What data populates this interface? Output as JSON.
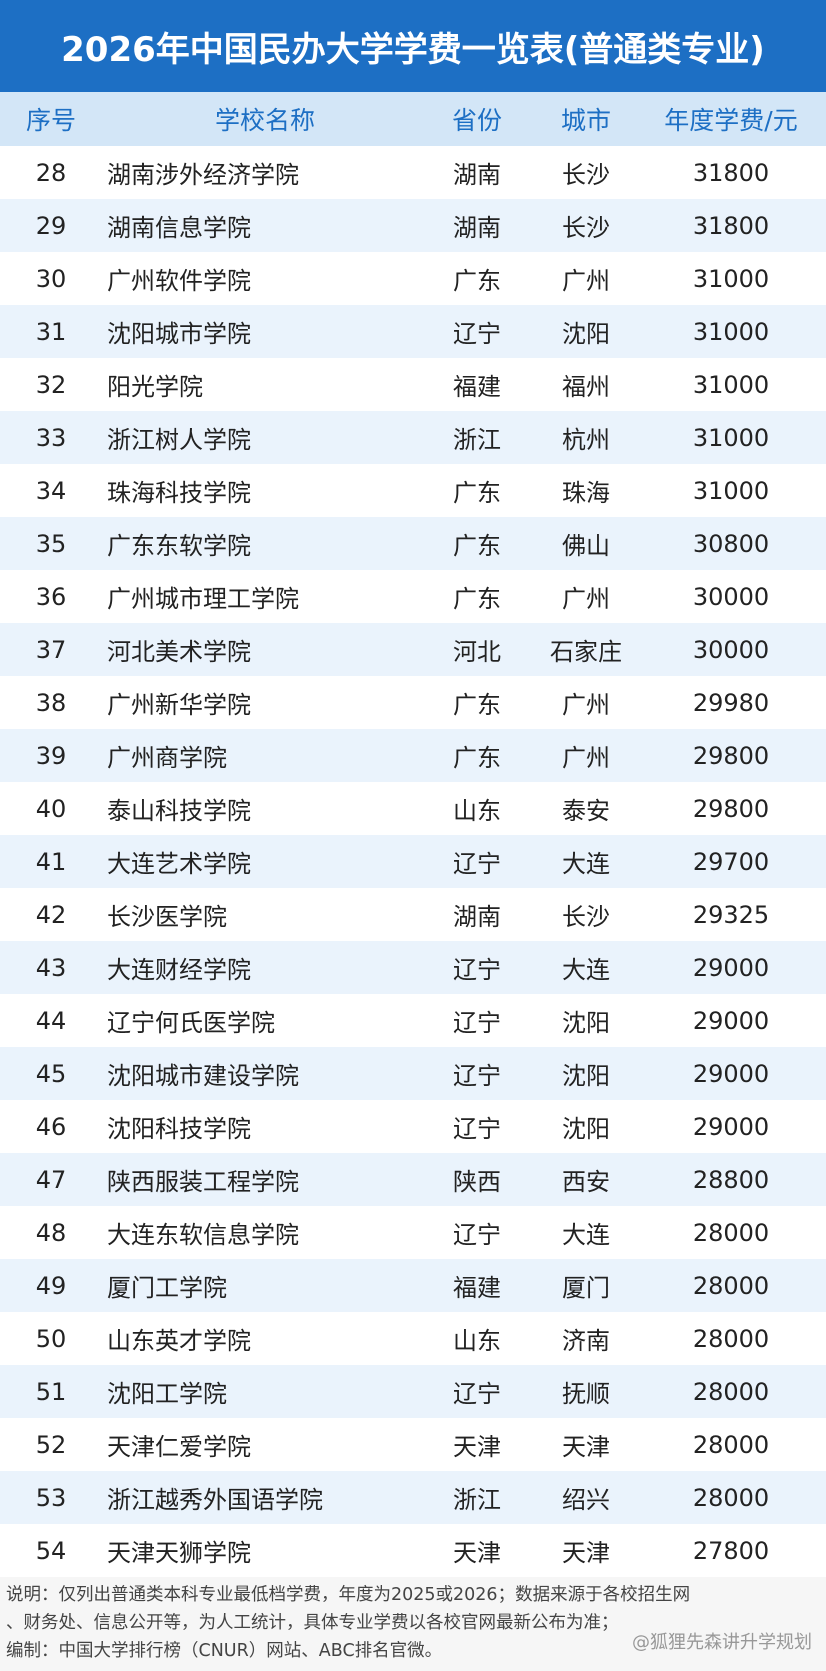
{
  "header": {
    "title": "2026年中国民办大学学费一览表(普通类专业)"
  },
  "table": {
    "columns": [
      "序号",
      "学校名称",
      "省份",
      "城市",
      "年度学费/元"
    ],
    "rows": [
      [
        28,
        "湖南涉外经济学院",
        "湖南",
        "长沙",
        31800
      ],
      [
        29,
        "湖南信息学院",
        "湖南",
        "长沙",
        31800
      ],
      [
        30,
        "广州软件学院",
        "广东",
        "广州",
        31000
      ],
      [
        31,
        "沈阳城市学院",
        "辽宁",
        "沈阳",
        31000
      ],
      [
        32,
        "阳光学院",
        "福建",
        "福州",
        31000
      ],
      [
        33,
        "浙江树人学院",
        "浙江",
        "杭州",
        31000
      ],
      [
        34,
        "珠海科技学院",
        "广东",
        "珠海",
        31000
      ],
      [
        35,
        "广东东软学院",
        "广东",
        "佛山",
        30800
      ],
      [
        36,
        "广州城市理工学院",
        "广东",
        "广州",
        30000
      ],
      [
        37,
        "河北美术学院",
        "河北",
        "石家庄",
        30000
      ],
      [
        38,
        "广州新华学院",
        "广东",
        "广州",
        29980
      ],
      [
        39,
        "广州商学院",
        "广东",
        "广州",
        29800
      ],
      [
        40,
        "泰山科技学院",
        "山东",
        "泰安",
        29800
      ],
      [
        41,
        "大连艺术学院",
        "辽宁",
        "大连",
        29700
      ],
      [
        42,
        "长沙医学院",
        "湖南",
        "长沙",
        29325
      ],
      [
        43,
        "大连财经学院",
        "辽宁",
        "大连",
        29000
      ],
      [
        44,
        "辽宁何氏医学院",
        "辽宁",
        "沈阳",
        29000
      ],
      [
        45,
        "沈阳城市建设学院",
        "辽宁",
        "沈阳",
        29000
      ],
      [
        46,
        "沈阳科技学院",
        "辽宁",
        "沈阳",
        29000
      ],
      [
        47,
        "陕西服装工程学院",
        "陕西",
        "西安",
        28800
      ],
      [
        48,
        "大连东软信息学院",
        "辽宁",
        "大连",
        28000
      ],
      [
        49,
        "厦门工学院",
        "福建",
        "厦门",
        28000
      ],
      [
        50,
        "山东英才学院",
        "山东",
        "济南",
        28000
      ],
      [
        51,
        "沈阳工学院",
        "辽宁",
        "抚顺",
        28000
      ],
      [
        52,
        "天津仁爱学院",
        "天津",
        "天津",
        28000
      ],
      [
        53,
        "浙江越秀外国语学院",
        "浙江",
        "绍兴",
        28000
      ],
      [
        54,
        "天津天狮学院",
        "天津",
        "天津",
        27800
      ]
    ]
  },
  "footer": {
    "notes": [
      "说明：仅列出普通类本科专业最低档学费，年度为2025或2026；数据来源于各校招生网",
      "、财务处、信息公开等，为人工统计，具体专业学费以各校官网最新公布为准；",
      "编制：中国大学排行榜（CNUR）网站、ABC排名官微。"
    ],
    "watermark": "@狐狸先森讲升学规划"
  }
}
